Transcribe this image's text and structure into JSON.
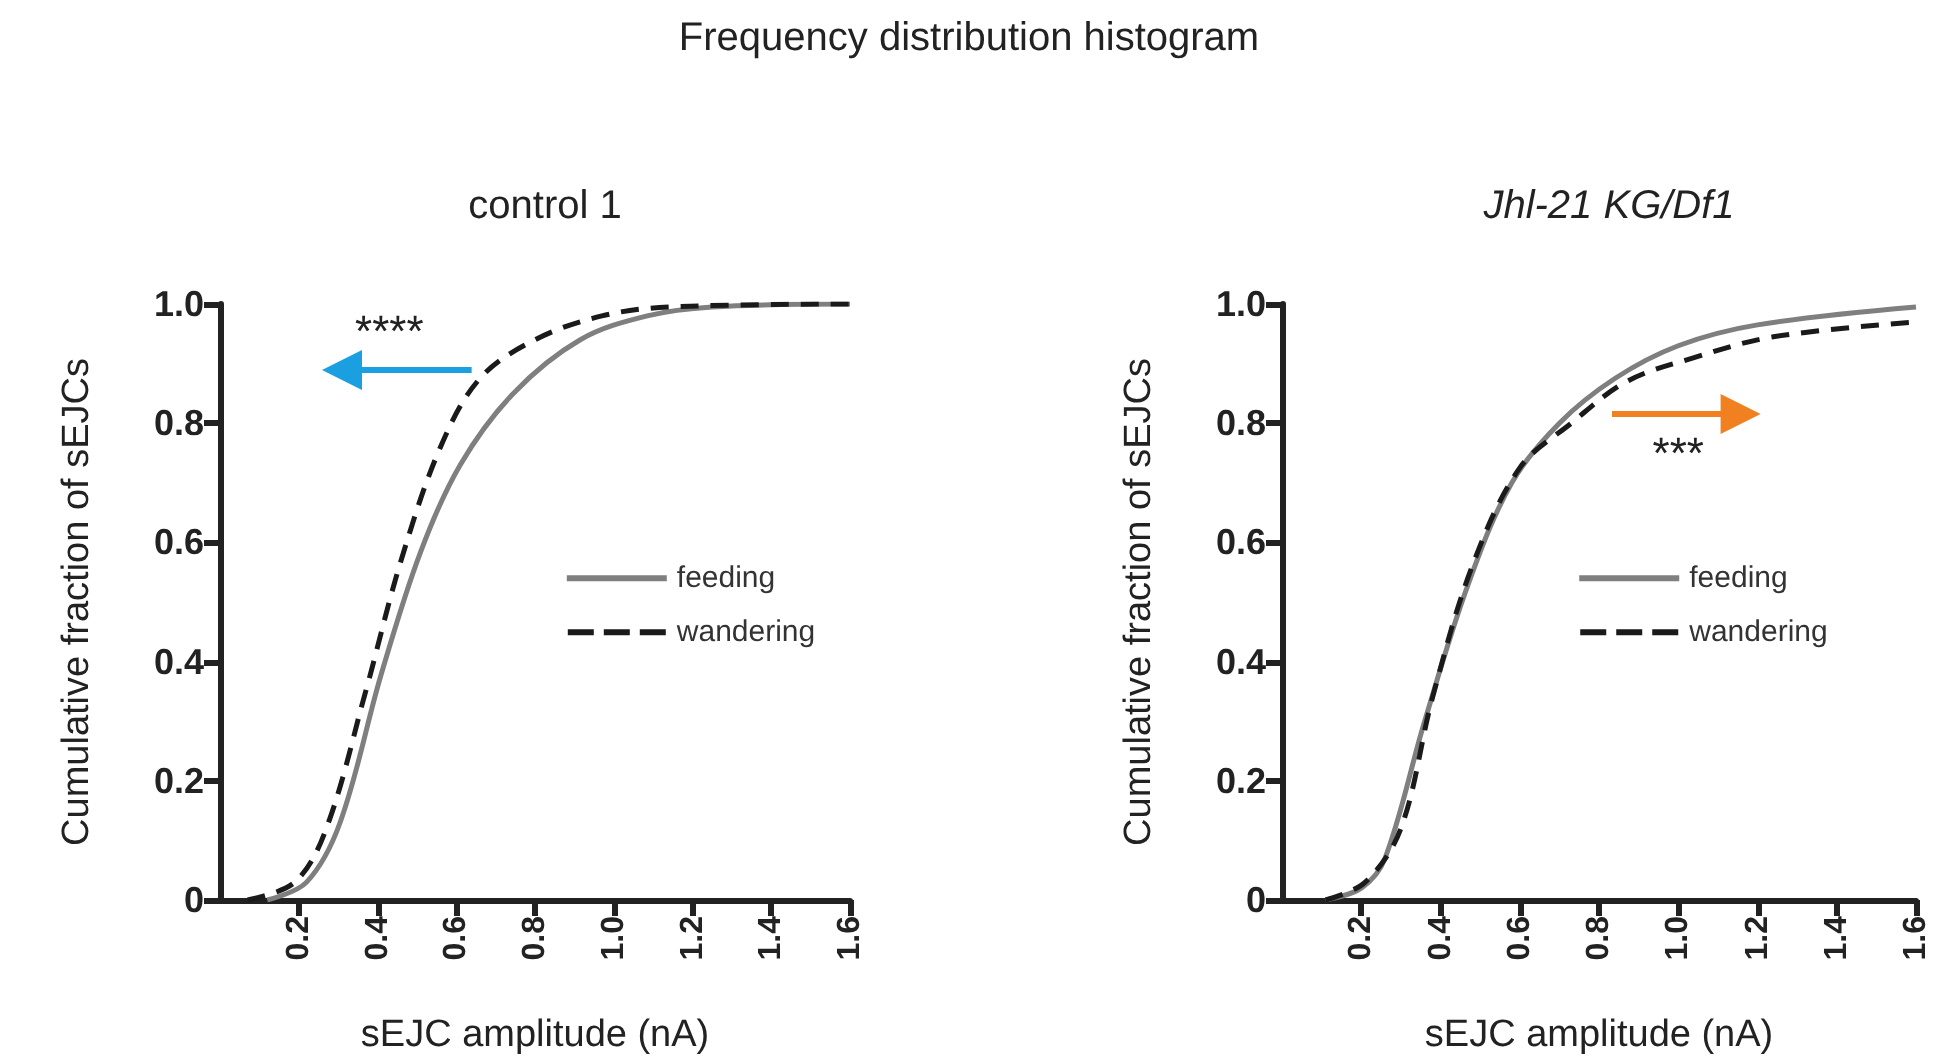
{
  "chart_data": [
    {
      "type": "line",
      "title": "Frequency distribution histogram",
      "subtitle": "control 1",
      "xlabel": "sEJC amplitude (nA)",
      "ylabel": "Cumulative fraction of sEJCs",
      "xlim": [
        0,
        1.6
      ],
      "xticks": [
        0.2,
        0.4,
        0.6,
        0.8,
        {
          "value": 1,
          "label": "1.0"
        },
        1.2,
        1.4,
        1.6
      ],
      "ylim": [
        0,
        1
      ],
      "yticks": [
        0,
        0.2,
        0.4,
        0.6,
        0.8,
        {
          "value": 1,
          "label": "1.0"
        }
      ],
      "legend": "right",
      "marker": "none",
      "annotations": [
        "****"
      ],
      "series": [
        {
          "name": "feeding",
          "color": "#7f7f7f",
          "line_style": "solid",
          "x": [
            0.12,
            0.22,
            0.305,
            0.41,
            0.51,
            0.61,
            0.745,
            0.915,
            1.085,
            1.25,
            1.6
          ],
          "values": [
            0,
            0.03,
            0.13,
            0.38,
            0.585,
            0.73,
            0.85,
            0.94,
            0.98,
            0.995,
            1.0
          ]
        },
        {
          "name": "wandering",
          "color": "#1a1a1a",
          "line_style": "dashed",
          "x": [
            0.07,
            0.19,
            0.27,
            0.37,
            0.46,
            0.56,
            0.66,
            0.8,
            0.97,
            1.14,
            1.6
          ],
          "values": [
            0,
            0.03,
            0.12,
            0.35,
            0.57,
            0.76,
            0.875,
            0.94,
            0.98,
            0.995,
            1.0
          ]
        }
      ]
    },
    {
      "type": "line",
      "subtitle": "Jhl-21 KG/Df1",
      "xlabel": "sEJC amplitude (nA)",
      "ylabel": "Cumulative fraction of sEJCs",
      "xlim": [
        0,
        1.6
      ],
      "xticks": [
        0.2,
        0.4,
        0.6,
        0.8,
        {
          "value": 1,
          "label": "1.0"
        },
        1.2,
        1.4,
        1.6
      ],
      "ylim": [
        0,
        1
      ],
      "yticks": [
        0,
        0.2,
        0.4,
        0.6,
        0.8,
        {
          "value": 1,
          "label": "1.0"
        }
      ],
      "legend": "right",
      "marker": "none",
      "annotations": [
        "***"
      ],
      "series": [
        {
          "name": "feeding",
          "color": "#7f7f7f",
          "line_style": "solid",
          "x": [
            0.11,
            0.2,
            0.26,
            0.36,
            0.47,
            0.58,
            0.7,
            0.84,
            1.0,
            1.2,
            1.6
          ],
          "values": [
            0,
            0.02,
            0.07,
            0.3,
            0.53,
            0.7,
            0.8,
            0.875,
            0.93,
            0.965,
            0.995
          ]
        },
        {
          "name": "wandering",
          "color": "#1a1a1a",
          "line_style": "dashed",
          "x": [
            0.11,
            0.21,
            0.3,
            0.38,
            0.48,
            0.6,
            0.73,
            0.87,
            1.04,
            1.24,
            1.6
          ],
          "values": [
            0,
            0.03,
            0.12,
            0.34,
            0.56,
            0.725,
            0.8,
            0.87,
            0.91,
            0.945,
            0.97
          ]
        }
      ]
    }
  ]
}
